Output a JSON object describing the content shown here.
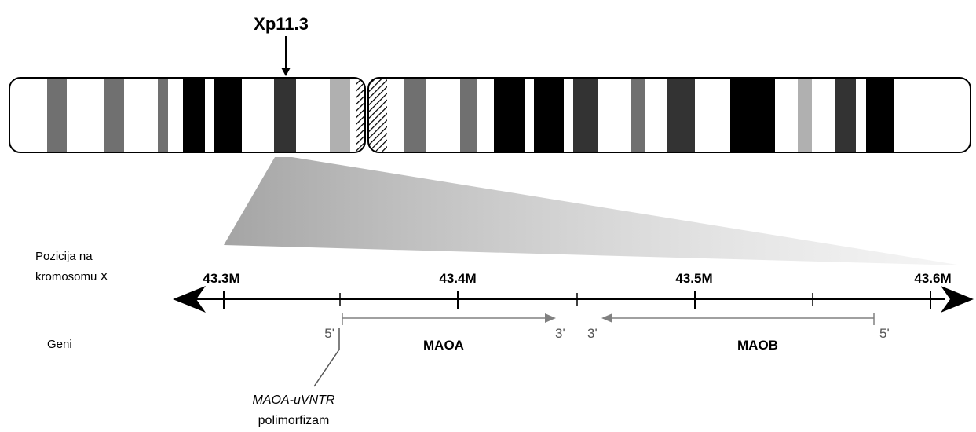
{
  "band_label": "Xp11.3",
  "position_label": [
    "Pozicija na",
    "kromosomu X"
  ],
  "genes_label": "Geni",
  "scale": {
    "ticks": [
      "43.3M",
      "43.4M",
      "43.5M",
      "43.6M"
    ]
  },
  "genes": [
    {
      "name": "MAOA",
      "strand_start": "5'",
      "strand_end": "3'",
      "direction": "forward"
    },
    {
      "name": "MAOB",
      "strand_start": "3'",
      "strand_end": "5'",
      "direction": "reverse"
    }
  ],
  "polymorphism": {
    "name": "MAOA-uVNTR",
    "type": "polimorfizam"
  },
  "colors": {
    "black": "#000000",
    "dark_gray": "#333333",
    "mid_gray": "#707070",
    "light_gray": "#b0b0b0",
    "gene_arrow": "#808080"
  }
}
